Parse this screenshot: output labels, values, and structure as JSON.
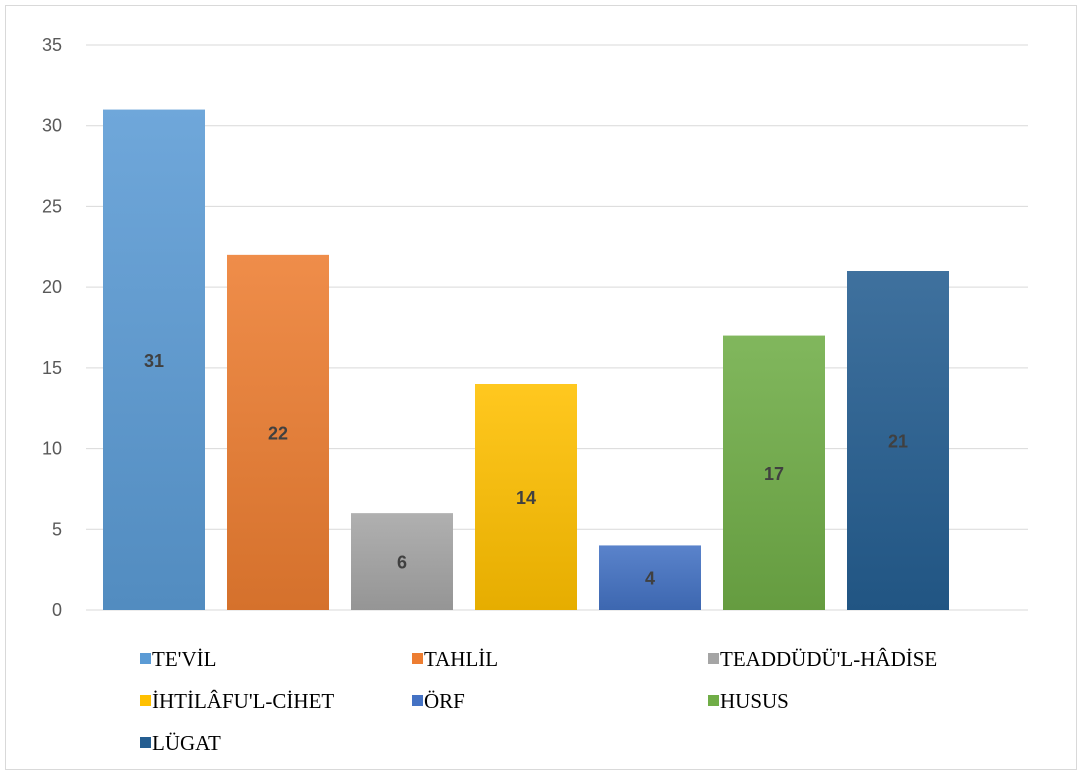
{
  "chart_data": {
    "type": "bar",
    "categories": [
      "TE'VİL",
      "TAHLİL",
      "TEADDÜDÜ'L-HÂDİSE",
      "İHTİLÂFU'L-CİHET",
      "ÖRF",
      "HUSUS",
      "LÜGAT"
    ],
    "values": [
      31,
      22,
      6,
      14,
      4,
      17,
      21
    ],
    "data_labels": [
      "31",
      "22",
      "6",
      "14",
      "4",
      "17",
      "21"
    ],
    "colors": [
      "#5b9bd5",
      "#ed7d31",
      "#a5a5a5",
      "#ffc000",
      "#4472c4",
      "#70ad47",
      "#255e91"
    ],
    "ylim": [
      0,
      35
    ],
    "yticks": [
      0,
      5,
      10,
      15,
      20,
      25,
      30,
      35
    ],
    "ytick_labels": [
      "0",
      "5",
      "10",
      "15",
      "20",
      "25",
      "30",
      "35"
    ],
    "grid": true,
    "legend_position": "bottom",
    "title": "",
    "xlabel": "",
    "ylabel": ""
  }
}
